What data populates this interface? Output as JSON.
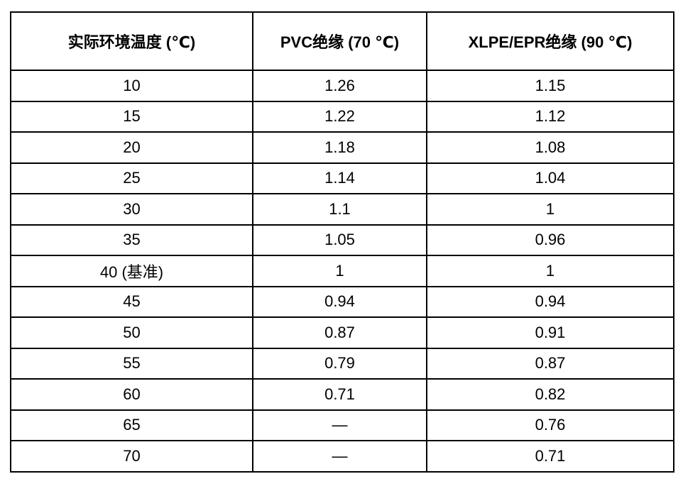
{
  "table": {
    "headers": [
      "实际环境温度 (℃)",
      "PVC绝缘 (70 ℃)",
      "XLPE/EPR绝缘 (90 ℃)"
    ],
    "rows": [
      [
        "10",
        "1.26",
        "1.15"
      ],
      [
        "15",
        "1.22",
        "1.12"
      ],
      [
        "20",
        "1.18",
        "1.08"
      ],
      [
        "25",
        "1.14",
        "1.04"
      ],
      [
        "30",
        "1.1",
        "1"
      ],
      [
        "35",
        "1.05",
        "0.96"
      ],
      [
        "40 (基准)",
        "1",
        "1"
      ],
      [
        "45",
        "0.94",
        "0.94"
      ],
      [
        "50",
        "0.87",
        "0.91"
      ],
      [
        "55",
        "0.79",
        "0.87"
      ],
      [
        "60",
        "0.71",
        "0.82"
      ],
      [
        "65",
        "—",
        "0.76"
      ],
      [
        "70",
        "—",
        "0.71"
      ]
    ],
    "border_color": "#000000",
    "background_color": "#ffffff",
    "text_color": "#000000"
  }
}
